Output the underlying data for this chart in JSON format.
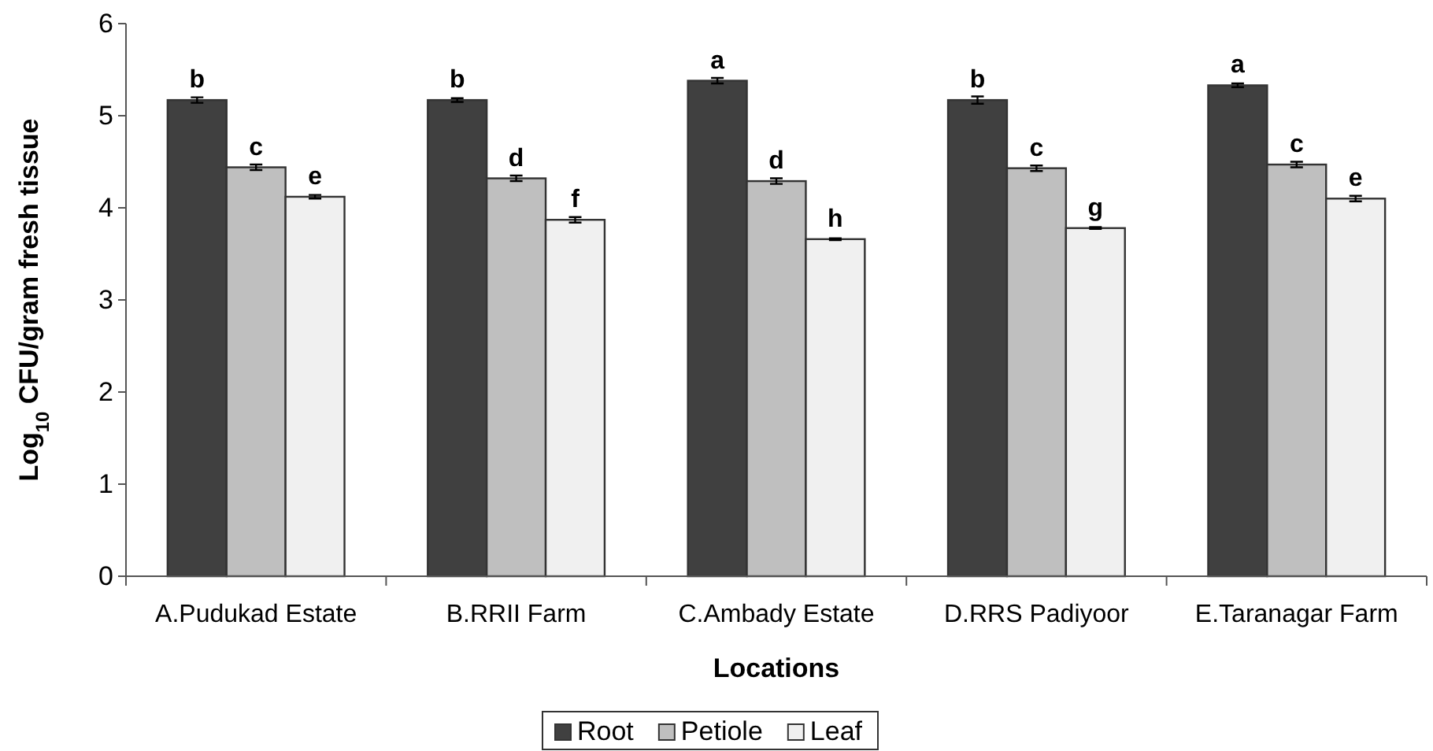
{
  "chart_data": {
    "type": "bar",
    "xlabel": "Locations",
    "ylabel": "Log$_{10}$ CFU/gram fresh tissue",
    "categories": [
      "A.Pudukad Estate",
      "B.RRII Farm",
      "C.Ambady Estate",
      "D.RRS Padiyoor",
      "E.Taranagar Farm"
    ],
    "series": [
      {
        "name": "Root",
        "color": "#404040",
        "values": [
          5.17,
          5.17,
          5.38,
          5.17,
          5.33
        ],
        "errors": [
          0.03,
          0.02,
          0.03,
          0.04,
          0.02
        ]
      },
      {
        "name": "Petiole",
        "color": "#bfbfbf",
        "values": [
          4.44,
          4.32,
          4.29,
          4.43,
          4.47
        ],
        "errors": [
          0.03,
          0.03,
          0.03,
          0.03,
          0.03
        ]
      },
      {
        "name": "Leaf",
        "color": "#f0f0f0",
        "values": [
          4.12,
          3.87,
          3.66,
          3.78,
          4.1
        ],
        "errors": [
          0.02,
          0.03,
          0.01,
          0.01,
          0.03
        ]
      }
    ],
    "ylim": [
      0,
      6
    ],
    "yticks": [
      0,
      1,
      2,
      3,
      4,
      5,
      6
    ],
    "grid": false,
    "legend": "bottom",
    "annotations": [
      "b",
      "c",
      "e",
      "b",
      "d",
      "f",
      "a",
      "d",
      "h",
      "b",
      "c",
      "g",
      "a",
      "c",
      "e"
    ]
  }
}
